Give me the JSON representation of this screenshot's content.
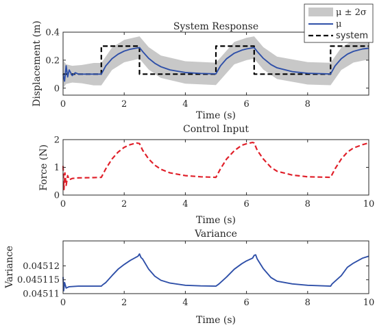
{
  "chart_data": [
    {
      "type": "line",
      "title": "System Response",
      "xlabel": "Time (s)",
      "ylabel": "Displacement (m)",
      "xlim": [
        0,
        10
      ],
      "ylim": [
        -0.05,
        0.4
      ],
      "xticks": [
        "0",
        "2",
        "4",
        "6",
        "8"
      ],
      "yticks": [
        "0",
        "0.2",
        "0.4"
      ],
      "legend_position": "top-right",
      "legend": [
        "μ ± 2σ",
        "μ",
        "system"
      ],
      "series": [
        {
          "name": "system",
          "style": "dashed",
          "color": "#000000",
          "x": [
            0,
            1.25,
            1.25,
            2.5,
            2.5,
            5.0,
            5.0,
            6.25,
            6.25,
            8.75,
            8.75,
            10
          ],
          "y": [
            0.1,
            0.1,
            0.3,
            0.3,
            0.1,
            0.1,
            0.3,
            0.3,
            0.1,
            0.1,
            0.3,
            0.3
          ]
        },
        {
          "name": "μ",
          "color": "#2E4FA8",
          "x": [
            0,
            0.05,
            0.1,
            0.15,
            0.2,
            0.3,
            0.4,
            0.5,
            0.6,
            1.0,
            1.25,
            1.4,
            1.6,
            1.8,
            2.0,
            2.2,
            2.5,
            2.6,
            2.8,
            3.0,
            3.2,
            3.5,
            4.0,
            4.5,
            5.0,
            5.15,
            5.35,
            5.6,
            5.85,
            6.0,
            6.25,
            6.35,
            6.55,
            6.8,
            7.0,
            7.5,
            8.0,
            8.75,
            8.9,
            9.1,
            9.3,
            9.5,
            9.8,
            10
          ],
          "y": [
            0.1,
            0.05,
            0.16,
            0.08,
            0.13,
            0.09,
            0.11,
            0.1,
            0.1,
            0.1,
            0.1,
            0.16,
            0.21,
            0.243,
            0.265,
            0.278,
            0.29,
            0.262,
            0.213,
            0.178,
            0.153,
            0.13,
            0.112,
            0.105,
            0.102,
            0.16,
            0.21,
            0.25,
            0.272,
            0.28,
            0.29,
            0.262,
            0.213,
            0.168,
            0.145,
            0.118,
            0.106,
            0.101,
            0.16,
            0.21,
            0.243,
            0.263,
            0.28,
            0.285
          ]
        },
        {
          "name": "μ ± 2σ",
          "type": "band",
          "color": "#c8c8c8",
          "x": [
            0,
            0.1,
            0.3,
            0.6,
            1.0,
            1.25,
            1.6,
            2.0,
            2.5,
            2.8,
            3.2,
            4.0,
            5.0,
            5.6,
            6.0,
            6.25,
            6.55,
            7.0,
            8.0,
            8.75,
            9.1,
            9.5,
            10
          ],
          "lower": [
            0.0,
            0.03,
            0.04,
            0.035,
            0.02,
            0.02,
            0.13,
            0.185,
            0.21,
            0.133,
            0.073,
            0.032,
            0.022,
            0.17,
            0.2,
            0.21,
            0.133,
            0.065,
            0.026,
            0.021,
            0.13,
            0.183,
            0.205
          ],
          "upper": [
            0.2,
            0.17,
            0.16,
            0.165,
            0.18,
            0.18,
            0.29,
            0.345,
            0.37,
            0.293,
            0.233,
            0.192,
            0.182,
            0.33,
            0.36,
            0.37,
            0.293,
            0.225,
            0.186,
            0.181,
            0.29,
            0.343,
            0.365
          ]
        }
      ]
    },
    {
      "type": "line",
      "title": "Control Input",
      "xlabel": "Time (s)",
      "ylabel": "Force (N)",
      "xlim": [
        0,
        10
      ],
      "ylim": [
        0,
        2
      ],
      "xticks": [
        "0",
        "2",
        "4",
        "6",
        "8",
        "10"
      ],
      "yticks": [
        "0",
        "1",
        "2"
      ],
      "series": [
        {
          "style": "dashed",
          "color": "#E0202A",
          "x": [
            0,
            0.03,
            0.06,
            0.1,
            0.15,
            0.2,
            0.3,
            0.5,
            1.0,
            1.25,
            1.4,
            1.6,
            1.8,
            2.0,
            2.2,
            2.4,
            2.5,
            2.6,
            2.8,
            3.0,
            3.2,
            3.5,
            4.0,
            4.5,
            5.0,
            5.15,
            5.35,
            5.6,
            5.85,
            6.0,
            6.2,
            6.25,
            6.35,
            6.55,
            6.8,
            7.0,
            7.5,
            8.0,
            8.75,
            8.9,
            9.1,
            9.3,
            9.5,
            9.8,
            10
          ],
          "y": [
            1.05,
            0.2,
            0.8,
            0.35,
            0.7,
            0.55,
            0.6,
            0.62,
            0.63,
            0.64,
            0.95,
            1.3,
            1.55,
            1.72,
            1.82,
            1.88,
            1.86,
            1.62,
            1.3,
            1.08,
            0.93,
            0.8,
            0.7,
            0.66,
            0.64,
            0.95,
            1.3,
            1.6,
            1.8,
            1.85,
            1.9,
            1.88,
            1.62,
            1.3,
            1.0,
            0.86,
            0.72,
            0.66,
            0.64,
            0.95,
            1.3,
            1.55,
            1.7,
            1.82,
            1.88
          ]
        }
      ]
    },
    {
      "type": "line",
      "title": "Variance",
      "xlabel": "Time (s)",
      "ylabel": "Variance",
      "xlim": [
        0,
        10
      ],
      "ylim": [
        0.04511,
        0.045129
      ],
      "xticks": [
        "0",
        "2",
        "4",
        "6",
        "8",
        "10"
      ],
      "yticks": [
        "0.04511",
        "0.045115",
        "0.04512"
      ],
      "series": [
        {
          "color": "#2E4FA8",
          "x": [
            0,
            0.02,
            0.05,
            0.1,
            0.2,
            0.5,
            1.0,
            1.25,
            1.3,
            1.4,
            1.6,
            1.8,
            2.0,
            2.2,
            2.45,
            2.5,
            2.55,
            2.6,
            2.8,
            3.0,
            3.2,
            3.5,
            4.0,
            4.5,
            5.0,
            5.1,
            5.35,
            5.6,
            5.85,
            6.0,
            6.2,
            6.25,
            6.3,
            6.35,
            6.55,
            6.8,
            7.0,
            7.5,
            8.0,
            8.75,
            8.8,
            9.1,
            9.3,
            9.5,
            9.8,
            10
          ],
          "y": [
            0.045116,
            0.045111,
            0.045114,
            0.045112,
            0.0451125,
            0.0451127,
            0.0451127,
            0.0451127,
            0.0451132,
            0.045114,
            0.0451165,
            0.0451188,
            0.0451205,
            0.045122,
            0.0451235,
            0.0451243,
            0.045123,
            0.0451225,
            0.0451188,
            0.0451163,
            0.0451148,
            0.0451138,
            0.045113,
            0.0451128,
            0.0451127,
            0.0451135,
            0.045116,
            0.0451188,
            0.0451208,
            0.0451218,
            0.0451228,
            0.0451238,
            0.045124,
            0.0451225,
            0.045119,
            0.0451158,
            0.0451145,
            0.0451135,
            0.045113,
            0.0451127,
            0.0451135,
            0.0451165,
            0.0451195,
            0.045121,
            0.0451228,
            0.0451235
          ]
        }
      ]
    }
  ]
}
